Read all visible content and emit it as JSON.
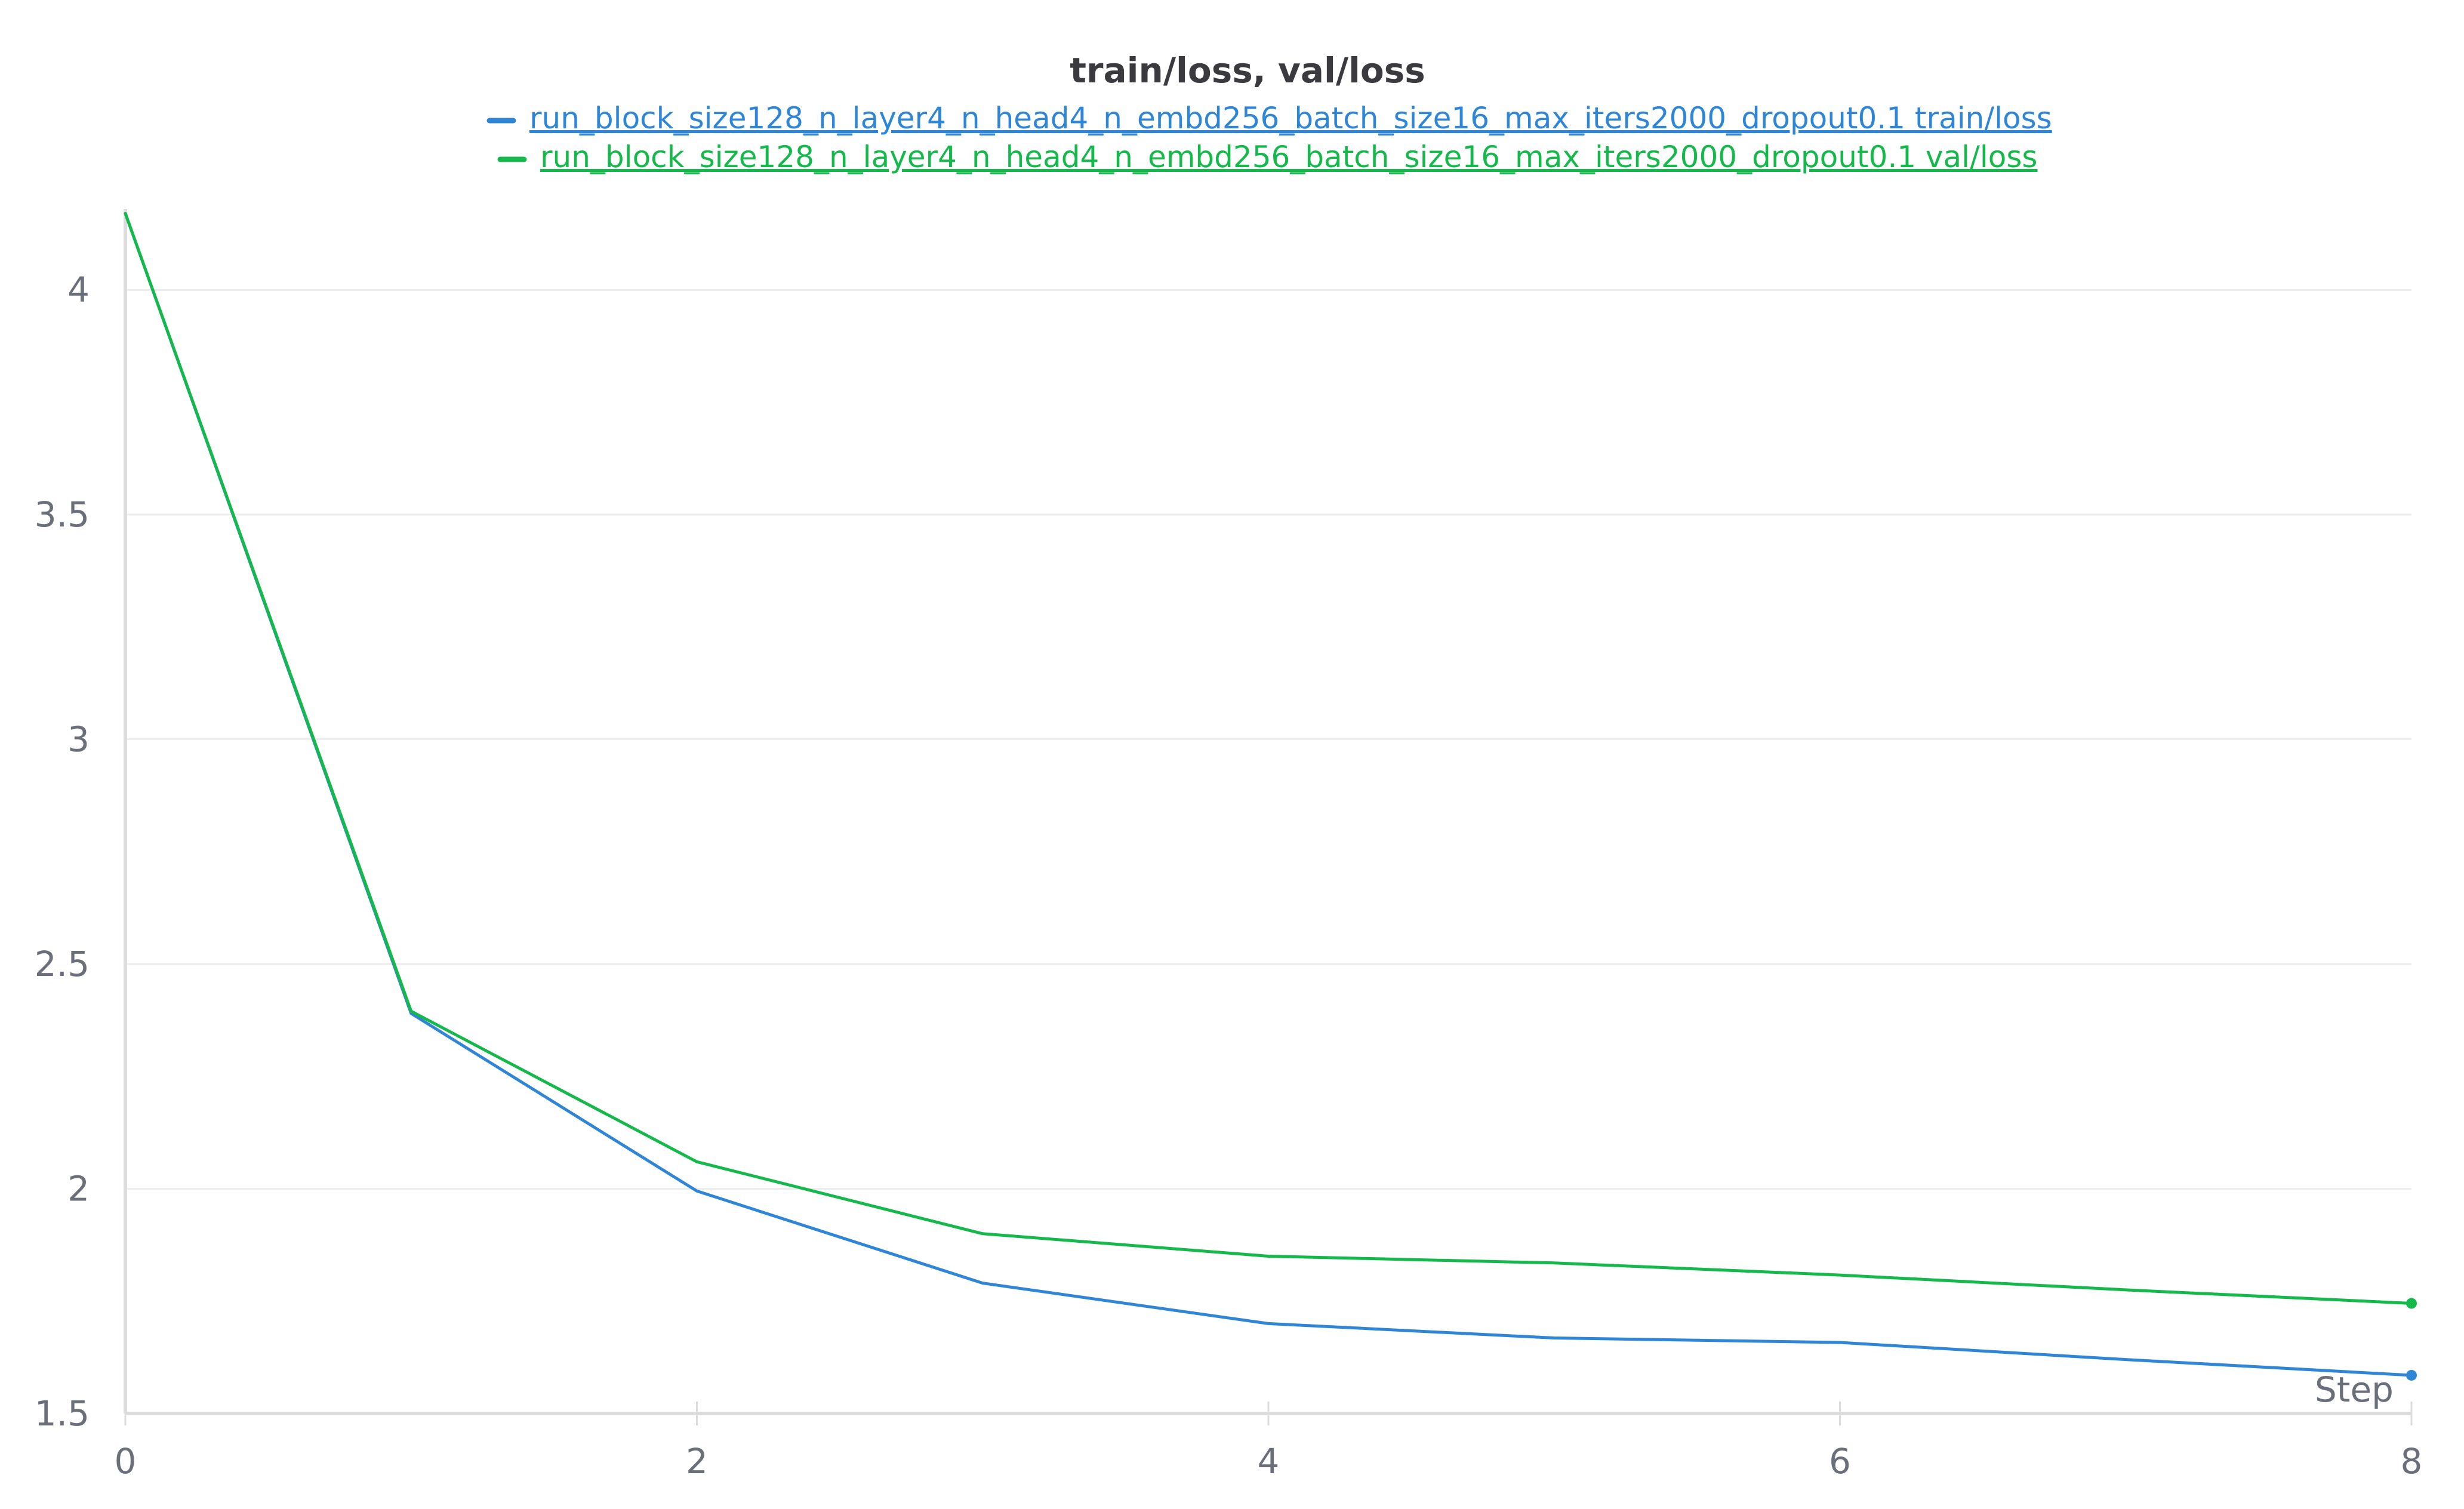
{
  "chart_data": {
    "type": "line",
    "title": "train/loss, val/loss",
    "xlabel": "Step",
    "ylabel": "",
    "xlim": [
      0,
      8
    ],
    "ylim": [
      1.5,
      4.18
    ],
    "xticks": [
      0,
      2,
      4,
      6,
      8
    ],
    "xtick_labels": [
      "0",
      "2",
      "4",
      "6",
      "8"
    ],
    "yticks": [
      1.5,
      2,
      2.5,
      3,
      3.5,
      4
    ],
    "ytick_labels": [
      "1.5",
      "2",
      "2.5",
      "3",
      "3.5",
      "4"
    ],
    "grid": true,
    "legend_position": "top-center",
    "x": [
      0,
      1,
      2,
      3,
      4,
      5,
      6,
      7,
      8
    ],
    "series": [
      {
        "name": "run_block_size128_n_layer4_n_head4_n_embd256_batch_size16_max_iters2000_dropout0.1 train/loss",
        "color": "#2f86d6",
        "values": [
          4.17,
          2.39,
          1.995,
          1.79,
          1.7,
          1.668,
          1.658,
          1.62,
          1.585
        ]
      },
      {
        "name": "run_block_size128_n_layer4_n_head4_n_embd256_batch_size16_max_iters2000_dropout0.1 val/loss",
        "color": "#14b84b",
        "values": [
          4.17,
          2.395,
          2.06,
          1.9,
          1.85,
          1.835,
          1.808,
          1.775,
          1.745
        ]
      }
    ]
  }
}
